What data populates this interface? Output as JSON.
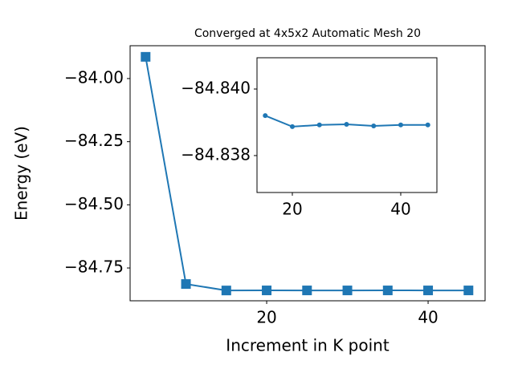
{
  "chart_data": [
    {
      "type": "line",
      "title": "Converged at 4x5x2 Automatic Mesh 20",
      "xlabel": "Increment in K point",
      "ylabel": "Energy (eV)",
      "x": [
        5,
        10,
        15,
        20,
        25,
        30,
        35,
        40,
        45
      ],
      "values": [
        -83.914,
        -84.8136,
        -84.8392,
        -84.83887,
        -84.83892,
        -84.83894,
        -84.83889,
        -84.83892,
        -84.83892
      ],
      "color": "#1f77b4",
      "marker": "square",
      "xlim": [
        3.08,
        47.06
      ],
      "ylim": [
        -84.88,
        -83.87
      ],
      "xticks": [
        20,
        40
      ],
      "yticks": [
        {
          "value": -84.75,
          "label": "−84.75"
        },
        {
          "value": -84.5,
          "label": "−84.50"
        },
        {
          "value": -84.25,
          "label": "−84.25"
        },
        {
          "value": -84.0,
          "label": "−84.00"
        }
      ]
    },
    {
      "type": "line",
      "x": [
        15,
        20,
        25,
        30,
        35,
        40,
        45
      ],
      "values": [
        -84.8392,
        -84.83887,
        -84.83892,
        -84.83894,
        -84.83889,
        -84.83892,
        -84.83892
      ],
      "color": "#1f77b4",
      "marker": "circle",
      "xlim": [
        13.48,
        46.67
      ],
      "ylim": [
        -84.83689,
        -84.84094
      ],
      "xticks": [
        20,
        40
      ],
      "yticks": [
        {
          "value": -84.838,
          "label": "−84.838"
        },
        {
          "value": -84.84,
          "label": "−84.840"
        }
      ]
    }
  ]
}
